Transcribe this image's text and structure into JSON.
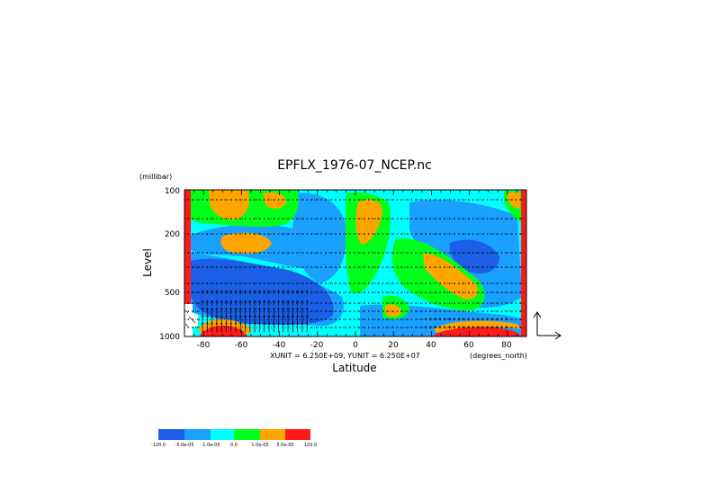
{
  "chart_data": {
    "type": "heatmap",
    "title": "EPFLX_1976-07_NCEP.nc",
    "xlabel": "Latitude",
    "ylabel": "Level",
    "y_units": "(millibar)",
    "x_units": "(degrees_north)",
    "vector_scale_text": "XUNIT = 6.250E+09, YUNIT = 6.250E+07",
    "xlim": [
      -90,
      90
    ],
    "ylim": [
      1000,
      100
    ],
    "y_scale": "log",
    "x_ticks": [
      -80,
      -60,
      -40,
      -20,
      0,
      20,
      40,
      60,
      80
    ],
    "y_ticks": [
      100,
      200,
      500,
      1000
    ],
    "grid": "dotted horizontal lines at pressure levels",
    "colorbar": {
      "labels": [
        "-120.0",
        "-5.0e-05",
        "-1.0e-05",
        "0.0",
        "1.0e-05",
        "5.0e-05",
        "120.0"
      ],
      "colors": [
        "#1a5fe6",
        "#1aa0ff",
        "#00ffff",
        "#00ff1a",
        "#ffa500",
        "#ff1a1a"
      ]
    },
    "colors": {
      "c1": "#1a5fe6",
      "c2": "#1aa0ff",
      "c3": "#00ffff",
      "c4": "#00ff1a",
      "c5": "#ffa500",
      "c6": "#ff1a1a"
    }
  }
}
